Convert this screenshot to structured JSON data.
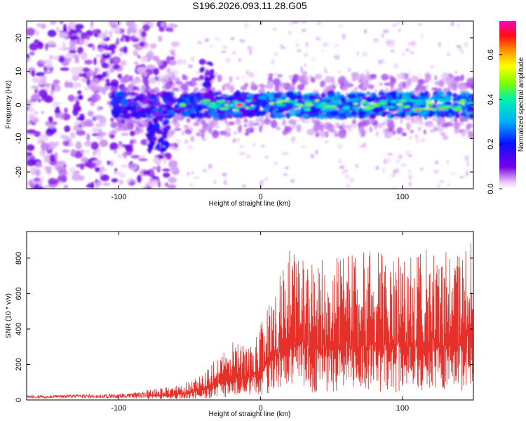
{
  "title": "S196.2026.093.11.28.G05",
  "chart_data": [
    {
      "type": "heatmap",
      "xlabel": "Height of straight line (km)",
      "ylabel": "Frequency (Hz)",
      "xlim": [
        -165,
        150
      ],
      "ylim": [
        -25,
        25
      ],
      "xticks": [
        -100,
        0,
        100
      ],
      "xtick_labels": [
        "-100",
        "0",
        "100"
      ],
      "yticks": [
        -20,
        -10,
        0,
        10,
        20
      ],
      "ytick_labels": [
        "-20",
        "-10",
        "0",
        "10",
        "20"
      ],
      "colorbar": {
        "label": "Normalized spectral amplitude",
        "range": [
          0,
          0.75
        ],
        "ticks": [
          0,
          0.2,
          0.4,
          0.6
        ],
        "tick_labels": [
          "0.0",
          "0.2",
          "0.4",
          "0.6"
        ]
      },
      "ridge": {
        "start_x": -105,
        "frequency_hz": 0,
        "features": [
          {
            "x": -55,
            "y": 0,
            "amplitude": 0.45
          },
          {
            "x": -15,
            "y": 0,
            "amplitude": 0.72
          },
          {
            "x": 60,
            "y": -1,
            "amplitude": 0.35
          },
          {
            "x": 110,
            "y": -1.5,
            "amplitude": 0.68
          },
          {
            "x": 128,
            "y": -1,
            "amplitude": 0.65
          }
        ],
        "side_lobe": {
          "x": -38,
          "y_range": [
            0,
            13
          ]
        }
      },
      "noise_region": {
        "x_range": [
          -165,
          -70
        ],
        "y_range": [
          -25,
          25
        ],
        "amplitude": 0.1
      }
    },
    {
      "type": "line",
      "xlabel": "Height of straight line (km)",
      "ylabel": "SNR (10 * v/v)",
      "xlim": [
        -165,
        150
      ],
      "ylim": [
        0,
        950
      ],
      "xticks": [
        -100,
        0,
        100
      ],
      "xtick_labels": [
        "-100",
        "0",
        "100"
      ],
      "yticks": [
        0,
        200,
        400,
        600,
        800
      ],
      "ytick_labels": [
        "0",
        "200",
        "400",
        "600",
        "800"
      ],
      "line_color": "#e8302a",
      "x": [
        -165,
        -140,
        -115,
        -90,
        -70,
        -60,
        -50,
        -40,
        -30,
        -20,
        -10,
        0,
        10,
        20,
        35,
        50,
        65,
        80,
        95,
        110,
        125,
        140,
        148,
        150
      ],
      "y": [
        25,
        30,
        30,
        40,
        75,
        85,
        110,
        150,
        250,
        330,
        300,
        430,
        620,
        860,
        790,
        800,
        860,
        840,
        820,
        850,
        880,
        860,
        940,
        600
      ]
    }
  ]
}
